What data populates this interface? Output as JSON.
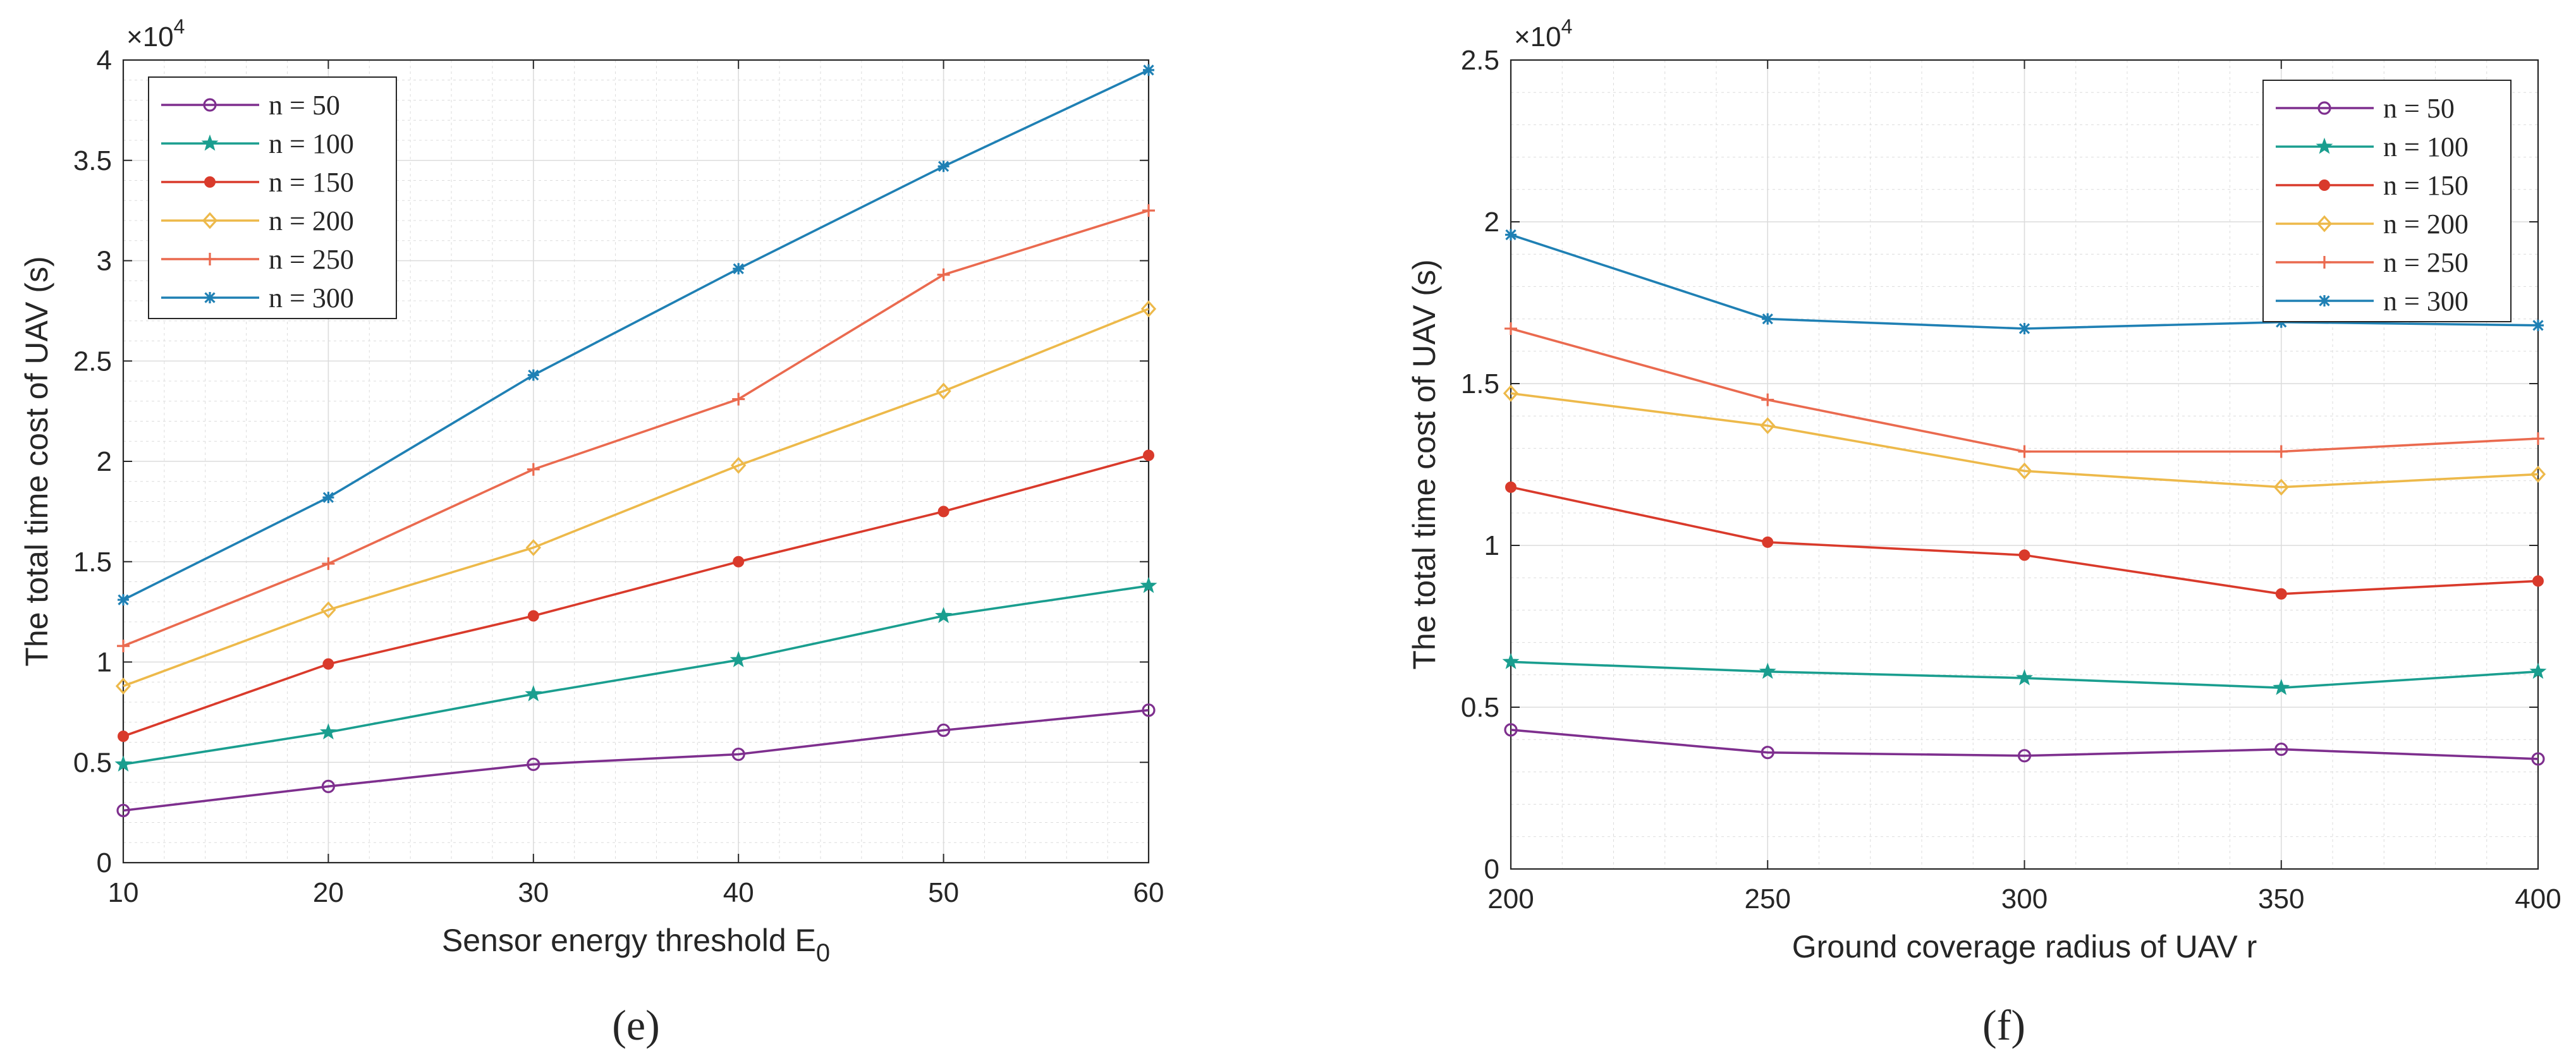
{
  "colors": {
    "n50": "#7E2F8E",
    "n100": "#1A9E8F",
    "n150": "#D93A2B",
    "n200": "#EDB94A",
    "n250": "#EA6A4F",
    "n300": "#1F80B4",
    "axis": "#262626",
    "grid": "#dcdcdc"
  },
  "chart_data": [
    {
      "type": "line",
      "panel_label": "(e)",
      "panel_letter": "e",
      "title": "",
      "xlabel": "Sensor energy threshold E",
      "xlabel_sub": "0",
      "ylabel": "The total time cost of UAV (s)",
      "y_multiplier": "×10",
      "y_multiplier_exp": "4",
      "x": [
        10,
        20,
        30,
        40,
        50,
        60
      ],
      "xlim": [
        10,
        60
      ],
      "ylim": [
        0,
        4
      ],
      "xticks": [
        10,
        20,
        30,
        40,
        50,
        60
      ],
      "yticks": [
        0,
        0.5,
        1,
        1.5,
        2,
        2.5,
        3,
        3.5,
        4
      ],
      "ytick_labels": [
        "0",
        "0.5",
        "1",
        "1.5",
        "2",
        "2.5",
        "3",
        "3.5",
        "4"
      ],
      "grid": true,
      "legend_position": "top-left",
      "series": [
        {
          "name": "n = 50",
          "color_key": "n50",
          "marker": "circle",
          "values": [
            0.26,
            0.38,
            0.49,
            0.54,
            0.66,
            0.76
          ]
        },
        {
          "name": "n = 100",
          "color_key": "n100",
          "marker": "star",
          "values": [
            0.49,
            0.65,
            0.84,
            1.01,
            1.23,
            1.38
          ]
        },
        {
          "name": "n = 150",
          "color_key": "n150",
          "marker": "dot",
          "values": [
            0.63,
            0.99,
            1.23,
            1.5,
            1.75,
            2.03
          ]
        },
        {
          "name": "n = 200",
          "color_key": "n200",
          "marker": "diamond",
          "values": [
            0.88,
            1.26,
            1.57,
            1.98,
            2.35,
            2.76
          ]
        },
        {
          "name": "n = 250",
          "color_key": "n250",
          "marker": "plus",
          "values": [
            1.08,
            1.49,
            1.96,
            2.31,
            2.93,
            3.25
          ]
        },
        {
          "name": "n = 300",
          "color_key": "n300",
          "marker": "asterisk",
          "values": [
            1.31,
            1.82,
            2.43,
            2.96,
            3.47,
            3.95
          ]
        }
      ]
    },
    {
      "type": "line",
      "panel_label": "(f)",
      "panel_letter": "f",
      "title": "",
      "xlabel": "Ground coverage radius of UAV r",
      "xlabel_sub": "",
      "ylabel": "The total time cost of UAV (s)",
      "y_multiplier": "×10",
      "y_multiplier_exp": "4",
      "x": [
        200,
        250,
        300,
        350,
        400
      ],
      "xlim": [
        200,
        400
      ],
      "ylim": [
        0,
        2.5
      ],
      "xticks": [
        200,
        250,
        300,
        350,
        400
      ],
      "yticks": [
        0,
        0.5,
        1,
        1.5,
        2,
        2.5
      ],
      "ytick_labels": [
        "0",
        "0.5",
        "1",
        "1.5",
        "2",
        "2.5"
      ],
      "grid": true,
      "legend_position": "top-right",
      "series": [
        {
          "name": "n = 50",
          "color_key": "n50",
          "marker": "circle",
          "values": [
            0.43,
            0.36,
            0.35,
            0.37,
            0.34
          ]
        },
        {
          "name": "n = 100",
          "color_key": "n100",
          "marker": "star",
          "values": [
            0.64,
            0.61,
            0.59,
            0.56,
            0.61
          ]
        },
        {
          "name": "n = 150",
          "color_key": "n150",
          "marker": "dot",
          "values": [
            1.18,
            1.01,
            0.97,
            0.85,
            0.89
          ]
        },
        {
          "name": "n = 200",
          "color_key": "n200",
          "marker": "diamond",
          "values": [
            1.47,
            1.37,
            1.23,
            1.18,
            1.22
          ]
        },
        {
          "name": "n = 250",
          "color_key": "n250",
          "marker": "plus",
          "values": [
            1.67,
            1.45,
            1.29,
            1.29,
            1.33
          ]
        },
        {
          "name": "n = 300",
          "color_key": "n300",
          "marker": "asterisk",
          "values": [
            1.96,
            1.7,
            1.67,
            1.69,
            1.68
          ]
        }
      ]
    }
  ]
}
